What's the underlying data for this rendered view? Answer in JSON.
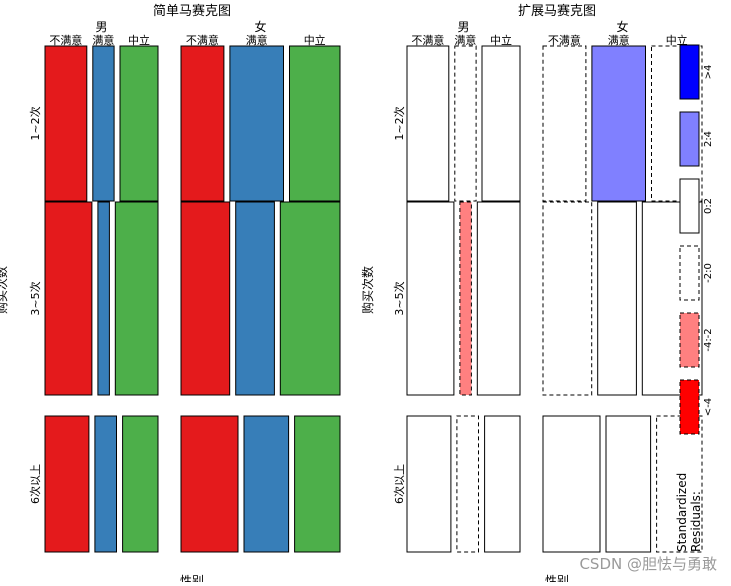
{
  "chart_data": [
    {
      "type": "mosaic",
      "title": "简单马赛克图",
      "xlabel": "性别",
      "ylabel": "购买次数",
      "column_groups": [
        "男",
        "女"
      ],
      "satisfaction_levels": [
        "不满意",
        "满意",
        "中立"
      ],
      "row_categories": [
        "1~2次",
        "3~5次",
        "6次以上"
      ],
      "colors": {
        "不满意": "#E41A1C",
        "满意": "#377EB8",
        "中立": "#4DAF4A"
      },
      "cells": {
        "男": {
          "1~2次": {
            "不满意": 0.055,
            "满意": 0.028,
            "中立": 0.05
          },
          "3~5次": {
            "不满意": 0.09,
            "满意": 0.022,
            "中立": 0.082
          },
          "6次以上": {
            "不满意": 0.067,
            "满意": 0.033,
            "中立": 0.054
          }
        },
        "女": {
          "1~2次": {
            "不满意": 0.056,
            "满意": 0.07,
            "中立": 0.066
          },
          "3~5次": {
            "不满意": 0.102,
            "满意": 0.081,
            "中立": 0.125
          },
          "6次以上": {
            "不满意": 0.069,
            "满意": 0.054,
            "中立": 0.055
          }
        }
      }
    },
    {
      "type": "mosaic",
      "title": "扩展马赛克图",
      "xlabel": "性别",
      "ylabel": "购买次数",
      "column_groups": [
        "男",
        "女"
      ],
      "satisfaction_levels": [
        "不满意",
        "满意",
        "中立"
      ],
      "row_categories": [
        "1~2次",
        "3~5次",
        "6次以上"
      ],
      "residual_class": {
        "男": {
          "1~2次": {
            "不满意": "0:2",
            "满意": "-2:0",
            "中立": "0:2"
          },
          "3~5次": {
            "不满意": "0:2",
            "满意": "-4:-2",
            "中立": "0:2"
          },
          "6次以上": {
            "不满意": "0:2",
            "满意": "-2:0",
            "中立": "0:2"
          }
        },
        "女": {
          "1~2次": {
            "不满意": "-2:0",
            "满意": "2:4",
            "中立": "-2:0"
          },
          "3~5次": {
            "不满意": "-2:0",
            "满意": "0:2",
            "中立": "0:2"
          },
          "6次以上": {
            "不满意": "0:2",
            "满意": "0:2",
            "中立": "-2:0"
          }
        }
      },
      "legend": {
        "title_line1": "Standardized",
        "title_line2": "Residuals:",
        "bins": [
          {
            "label": ">4",
            "color": "#0000FF",
            "dashed": false
          },
          {
            "label": "2:4",
            "color": "#8080FF",
            "dashed": false
          },
          {
            "label": "0:2",
            "color": "#FFFFFF",
            "dashed": false
          },
          {
            "label": "-2:0",
            "color": "#FFFFFF",
            "dashed": true
          },
          {
            "label": "-4:-2",
            "color": "#FF8080",
            "dashed": true
          },
          {
            "label": "<-4",
            "color": "#FF0000",
            "dashed": true
          }
        ]
      }
    }
  ],
  "watermark": "CSDN @胆怯与勇敢"
}
